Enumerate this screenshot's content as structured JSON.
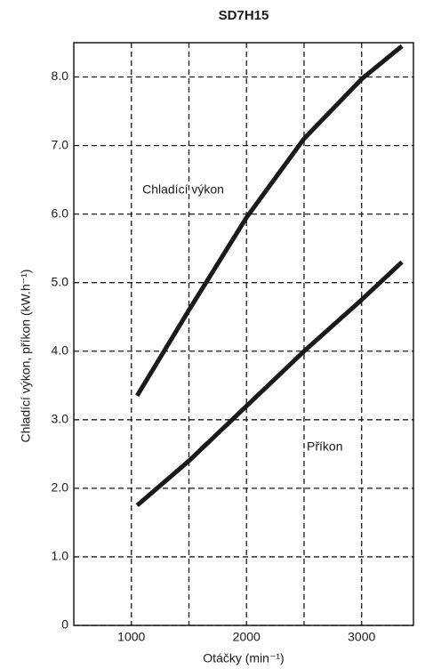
{
  "chart_data": {
    "type": "line",
    "title": "SD7H15",
    "xlabel": "Otáčky (min⁻¹)",
    "ylabel": "Chladící výkon, příkon (kW.h⁻¹)",
    "x": [
      1050,
      1500,
      2000,
      2500,
      3000,
      3350
    ],
    "series": [
      {
        "name": "Chladící výkon",
        "color": "#1a1a1a",
        "values": [
          3.35,
          4.6,
          5.95,
          7.1,
          7.97,
          8.45
        ]
      },
      {
        "name": "Příkon",
        "color": "#1a1a1a",
        "values": [
          1.75,
          2.4,
          3.2,
          4.0,
          4.75,
          5.3
        ]
      }
    ],
    "xlim": [
      500,
      3450
    ],
    "xticks": [
      1000,
      2000,
      3000
    ],
    "xgrid": [
      1000,
      1500,
      2000,
      2500,
      3000
    ],
    "ylim": [
      0,
      8.5
    ],
    "yticks": [
      0,
      {
        "value": 1,
        "label": "1.0"
      },
      {
        "value": 2,
        "label": "2.0"
      },
      {
        "value": 3,
        "label": "3.0"
      },
      {
        "value": 4,
        "label": "4.0"
      },
      {
        "value": 5,
        "label": "5.0"
      },
      {
        "value": 6,
        "label": "6.0"
      },
      {
        "value": 7,
        "label": "7.0"
      },
      {
        "value": 8,
        "label": "8.0"
      }
    ],
    "grid": true
  }
}
